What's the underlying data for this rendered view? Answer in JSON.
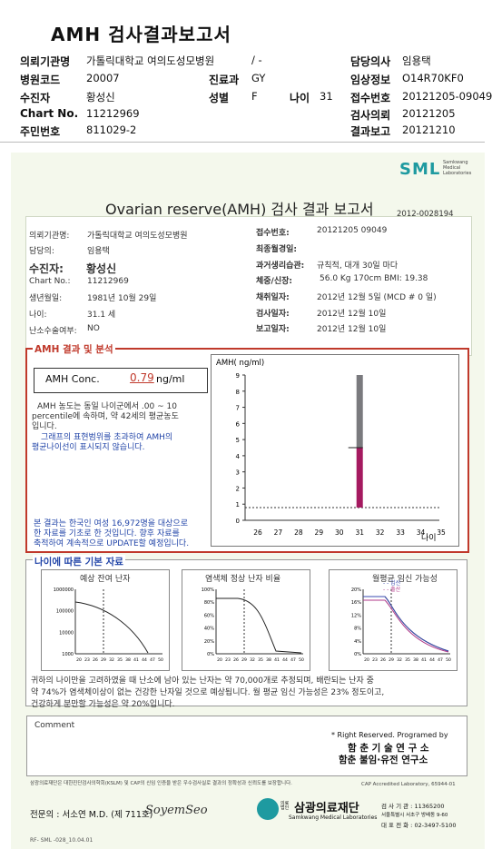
{
  "header": {
    "title": "AMH 검사결과보고서",
    "rows": [
      {
        "k1": "의뢰기관명",
        "v1": "가톨릭대학교 여의도성모병원",
        "k2": "",
        "v2": "/ -",
        "k3": "담당의사",
        "v3": "임용택"
      },
      {
        "k1": "병원코드",
        "v1": "20007",
        "k2": "진료과",
        "v2": "GY",
        "k3": "임상정보",
        "v3": "O14R70KF0"
      },
      {
        "k1": "수진자",
        "v1": "황성신",
        "k2": "성별",
        "v2": "F",
        "k2b": "나이",
        "v2b": "31",
        "k3": "접수번호",
        "v3": "20121205-09049"
      },
      {
        "k1": "Chart No.",
        "v1": "11212969",
        "k2": "",
        "v2": "",
        "k3": "검사의뢰",
        "v3": "20121205"
      },
      {
        "k1": "주민번호",
        "v1": "811029-2",
        "k2": "",
        "v2": "",
        "k3": "결과보고",
        "v3": "20121210"
      }
    ]
  },
  "sheet": {
    "brand": "SML",
    "brand_sub": [
      "Samkwang",
      "Medical",
      "Laboratories"
    ],
    "title": "Ovarian reserve(AMH) 검사 결과 보고서",
    "doc_no": "2012-0028194",
    "left_fields": [
      {
        "k": "의뢰기관명:",
        "v": "가톨릭대학교 여의도성모병원"
      },
      {
        "k": "담당의:",
        "v": "임용택"
      },
      {
        "k": "수진자:",
        "v": "황성신"
      },
      {
        "k": "Chart No.:",
        "v": "11212969"
      },
      {
        "k": "생년월일:",
        "v": "1981년 10월 29일"
      },
      {
        "k": "나이:",
        "v": "31.1 세"
      },
      {
        "k": "난소수술여부:",
        "v": "NO"
      }
    ],
    "right_fields": [
      {
        "k": "접수번호:",
        "v": "20121205 09049"
      },
      {
        "k": "최종월경일:",
        "v": ""
      },
      {
        "k": "과거생리습관:",
        "v": "규칙적, 대개  30일 마다"
      },
      {
        "k": "체중/신장:",
        "v": "56.0 Kg    170cm    BMI: 19.38"
      },
      {
        "k": "채취일자:",
        "v": "2012년 12월 5일    (MCD # 0 일)"
      },
      {
        "k": "검사일자:",
        "v": "2012년 12월 10일"
      },
      {
        "k": "보고일자:",
        "v": "2012년 12월 10일"
      }
    ],
    "result_section_title": "AMH 결과 및 분석",
    "amh_label": "AMH Conc.",
    "amh_value": "0.79",
    "amh_unit": "ng/ml",
    "analysis_lines": [
      "AMH 농도는 동일 나이군에서  .00 ~  10",
      "percentile에 속하며, 약   42세의 평균농도",
      "입니다.",
      "그래프의 표현범위를 초과하여 AMH의",
      "평균나이선이 표시되지 않습니다."
    ],
    "disclaimer_lines": [
      "본 결과는 한국인 여성 16,972명을 대상으로",
      "한 자료를 기초로 한 것입니다. 향후 자료를",
      "축적하여 계속적으로 UPDATE할 예정입니다."
    ],
    "chart_title": "AMH( ng/ml)",
    "chart_xlabel": "나이",
    "basic_title": "나이에 따른 기본 자료",
    "mini_titles": [
      "예상 잔여 난자",
      "염색체 정상 난자 비율",
      "월평균 임신 가능성"
    ],
    "mini3_legend": [
      "- - 임신",
      "- - 출산"
    ],
    "mini1_yticks": [
      "1000000",
      "100000",
      "10000",
      "1000"
    ],
    "mini2_yticks": [
      "100%",
      "80%",
      "60%",
      "40%",
      "20%",
      "0%"
    ],
    "mini3_yticks": [
      "20%",
      "16%",
      "12%",
      "8%",
      "4%",
      "0%"
    ],
    "mini_xticks": [
      "20",
      "23",
      "26",
      "29",
      "32",
      "35",
      "38",
      "41",
      "44",
      "47",
      "50"
    ],
    "summary_lines": [
      "귀하의 나이만을 고려하였을 때 난소에 남아 있는 난자는 약   70,000개로 추정되며, 배란되는 난자 중",
      "약  74%가 염색체이상이 없는 건강한 난자일 것으로 예상됩니다. 월 평균 임신 가능성은  23%  정도이고,",
      "건강하게 분만할 가능성은 약  20%입니다."
    ],
    "comment_label": "Comment",
    "rights": "* Right Reserved. Programed by",
    "lab1": "함 춘 기 술 연 구 소",
    "lab2": "함춘 불임·유전 연구소",
    "footnote": "삼광의료재단은 대한진단검사의학회(KSLM) 및 CAP의 신임 인증을 받은 우수검사실로 결과의 정확성과 신뢰도를 보장합니다.",
    "cap": "CAP  Accredited  Laboratory,   65944-01",
    "specialist": "전문의 : 서소연 M.D. (제 711호)",
    "signature": "SoyemSeo",
    "foundation": "삼광의료재단",
    "foundation_prefix": "의료 법인",
    "foundation_en": "Samkwang Medical Laboratories",
    "reg_lines": [
      "검 사 기 관 : 11365200",
      "서울특별시 서초구 방배동 9-60",
      "대 표 전 화 : 02-3497-5100"
    ],
    "form_code": "RF- SML -028_10.04.01"
  },
  "chart_data": {
    "type": "bar",
    "title": "AMH( ng/ml)",
    "xlabel": "나이",
    "ylabel": "",
    "categories": [
      "26",
      "27",
      "28",
      "29",
      "30",
      "31",
      "32",
      "33",
      "34",
      "35"
    ],
    "ylim": [
      0,
      9
    ],
    "yticks": [
      0,
      1,
      2,
      3,
      4,
      5,
      6,
      7,
      8,
      9
    ],
    "percentile_range": {
      "age": 31,
      "upper_gray": 9.0,
      "marker": 4.5,
      "lower": 0.79
    },
    "reference_line": 0.79,
    "colors": {
      "upper": "#7a7a7e",
      "lower": "#a51a60"
    }
  }
}
